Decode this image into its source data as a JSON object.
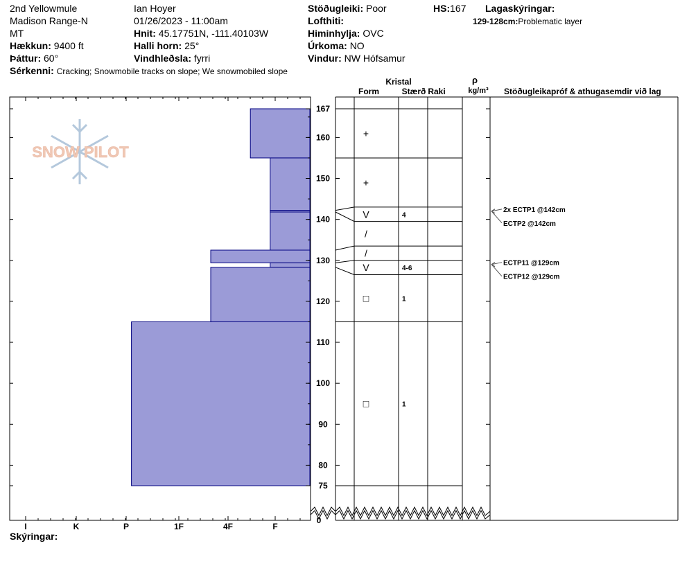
{
  "header": {
    "col1": {
      "location": "2nd Yellowmule",
      "range": "Madison Range-N",
      "state": "MT",
      "elevation_label": "Hækkun:",
      "elevation": "9400 ft",
      "aspect_label": "Þáttur:",
      "aspect": "60°",
      "features_label": "Sérkenni:",
      "features": "Cracking; Snowmobile tracks on slope; We snowmobiled slope"
    },
    "col2": {
      "observer": "Ian Hoyer",
      "datetime": "01/26/2023 - 11:00am",
      "coords_label": "Hnit:",
      "coords": "45.17751N, -111.40103W",
      "slope_label": "Halli horn:",
      "slope": "25°",
      "wind_loading_label": "Vindhleðsla:",
      "wind_loading": "fyrri"
    },
    "col3": {
      "stability_label": "Stöðugleiki:",
      "stability": "Poor",
      "air_temp_label": "Lofthiti:",
      "air_temp": "",
      "sky_label": "Himinhylja:",
      "sky": "OVC",
      "precip_label": "Úrkoma:",
      "precip": "NO",
      "wind_label": "Vindur:",
      "wind": "NW Hófsamur"
    },
    "col4": {
      "hs_label": "HS:",
      "hs": "167",
      "layer_notes_label": "Lagaskýringar:",
      "layer_note_range": "129-128cm:",
      "layer_note_text": "Problematic layer"
    }
  },
  "logo": {
    "text": "SNOW PILOT"
  },
  "columns": {
    "crystal": "Kristal",
    "form": "Form",
    "size": "Stærð",
    "moisture": "Raki",
    "rho": "ρ",
    "density_unit": "kg/m³",
    "tests": "Stöðugleikapróf & athugasemdir við lag"
  },
  "footer": {
    "notes_label": "Skýringar:"
  },
  "colors": {
    "layer_fill": "#9b9bd7",
    "layer_stroke": "#000080",
    "grid": "#000000",
    "logo_text": "#f0c8b4",
    "logo_flake": "#b4c8dc"
  },
  "chart_data": {
    "type": "bar",
    "title": "",
    "y_axis": {
      "ticks": [
        75,
        80,
        90,
        100,
        110,
        120,
        130,
        140,
        150,
        160,
        167
      ],
      "bottom_tick": 0,
      "range": [
        75,
        167
      ],
      "unit": "cm"
    },
    "x_axis": {
      "ticks": [
        "I",
        "K",
        "P",
        "1F",
        "4F",
        "F"
      ],
      "hardness_scale": [
        "F",
        "4F",
        "1F",
        "P",
        "K",
        "I"
      ]
    },
    "layers": [
      {
        "top": 167,
        "bottom": 155,
        "hardness": 1.2,
        "form_icon": "+",
        "size": ""
      },
      {
        "top": 155,
        "bottom": 142.2,
        "hardness": 0.8,
        "form_icon": "+",
        "size": ""
      },
      {
        "top": 142.2,
        "bottom": 141.8,
        "hardness": 0.8,
        "form_icon": "",
        "size": ""
      },
      {
        "top": 141.8,
        "bottom": 132.5,
        "hardness": 0.8,
        "form_icon": "/",
        "size": ""
      },
      {
        "top": 132.5,
        "bottom": 129.4,
        "hardness": 2.0,
        "form_icon": "/",
        "size": ""
      },
      {
        "top": 129.4,
        "bottom": 128.3,
        "hardness": 0.8,
        "form_icon": "",
        "size": ""
      },
      {
        "top": 128.3,
        "bottom": 115.0,
        "hardness": 2.0,
        "form_icon": "□",
        "size": ""
      },
      {
        "top": 115.0,
        "bottom": 75,
        "hardness": 3.6,
        "form_icon": "□",
        "size": ""
      }
    ],
    "grain_rows": [
      {
        "top": 167,
        "bottom": 155,
        "form": "+",
        "size": ""
      },
      {
        "top": 155,
        "bottom": 143,
        "form": "+",
        "size": ""
      },
      {
        "top": 143,
        "bottom": 139.5,
        "form": "V",
        "size": "4"
      },
      {
        "top": 139.5,
        "bottom": 133.5,
        "form": "/",
        "size": ""
      },
      {
        "top": 133.5,
        "bottom": 130,
        "form": "/",
        "size": ""
      },
      {
        "top": 130,
        "bottom": 126.5,
        "form": "V",
        "size": "4-6"
      },
      {
        "top": 126.5,
        "bottom": 115,
        "form": "□",
        "size": "1"
      },
      {
        "top": 115,
        "bottom": 75,
        "form": "□",
        "size": "1"
      }
    ],
    "tests": [
      {
        "depth": 142,
        "label": "2x ECTP1 @142cm"
      },
      {
        "depth": 142,
        "label": "ECTP2 @142cm"
      },
      {
        "depth": 129,
        "label": "ECTP11 @129cm"
      },
      {
        "depth": 129,
        "label": "ECTP12 @129cm"
      }
    ]
  }
}
